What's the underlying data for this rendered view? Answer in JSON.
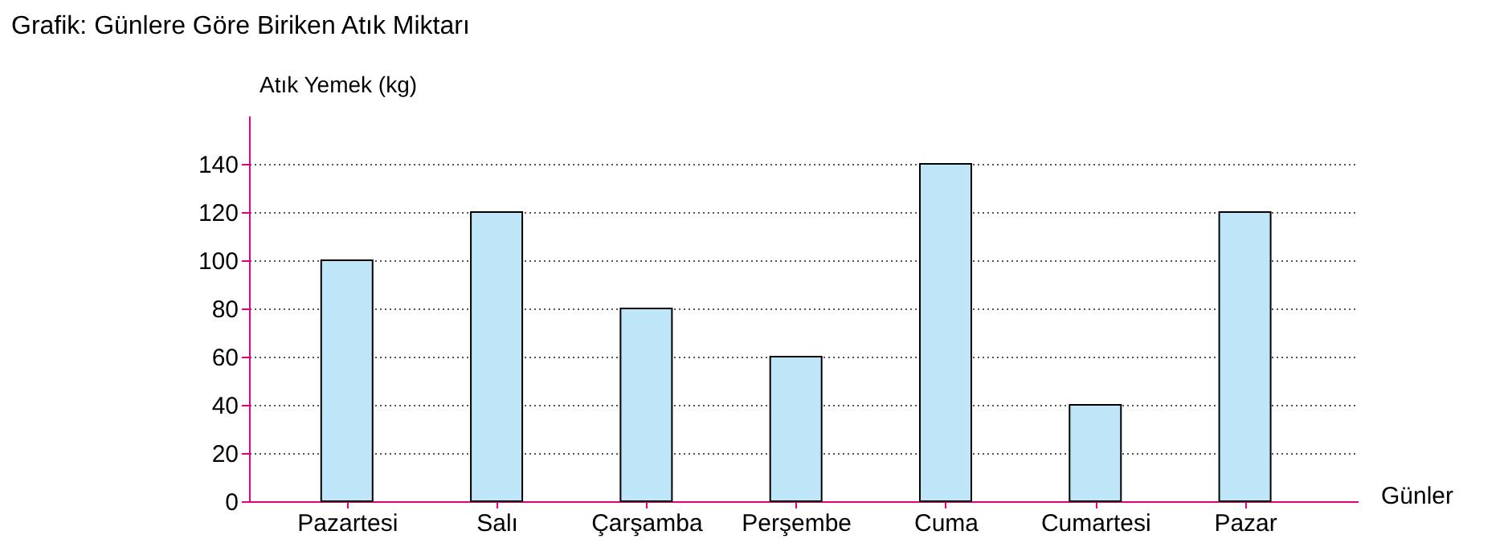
{
  "chart_data": {
    "type": "bar",
    "title": "Grafik: Günlere Göre Biriken Atık Miktarı",
    "xlabel": "Günler",
    "ylabel": "Atık Yemek (kg)",
    "categories": [
      "Pazartesi",
      "Salı",
      "Çarşamba",
      "Perşembe",
      "Cuma",
      "Cumartesi",
      "Pazar"
    ],
    "values": [
      100,
      120,
      80,
      60,
      140,
      40,
      120
    ],
    "color": "#bfe6f8",
    "ylim": [
      0,
      160
    ],
    "yticks": [
      0,
      20,
      40,
      60,
      80,
      100,
      120,
      140
    ],
    "grid": "y"
  }
}
